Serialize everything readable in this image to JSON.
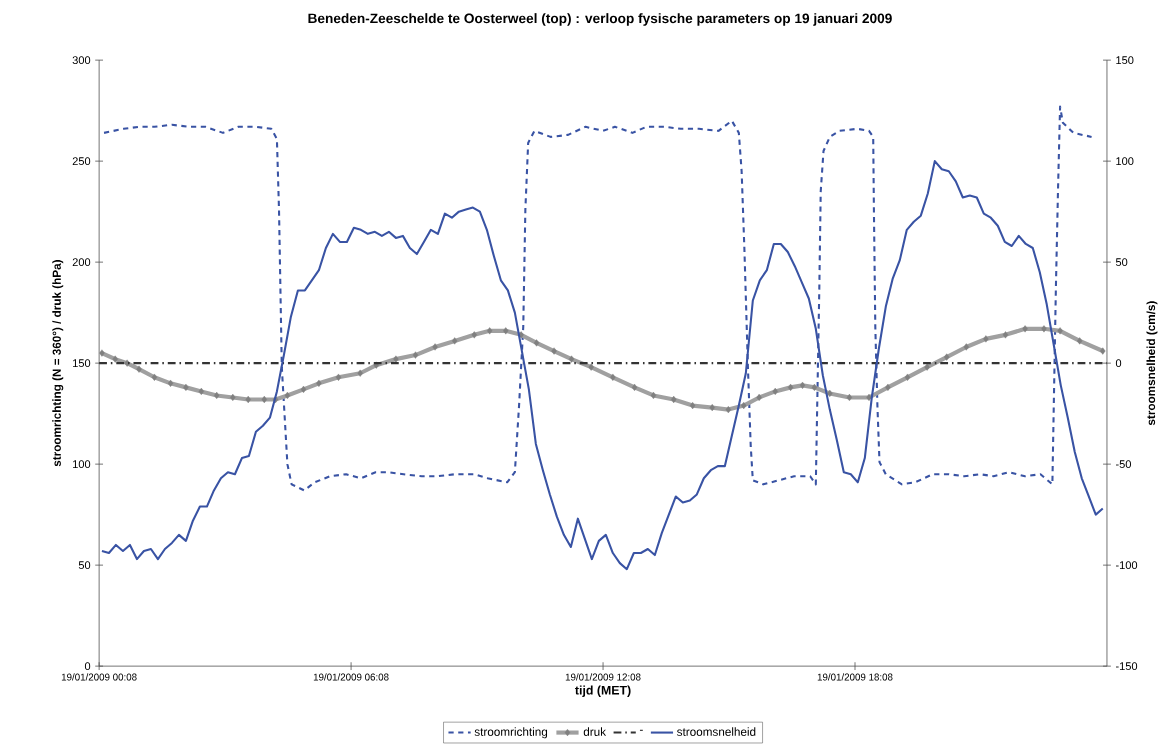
{
  "chart_data": {
    "type": "line",
    "title": "Beneden-Zeeschelde te Oosterweel (top) : verloop fysische parameters op 19 januari 2009",
    "xlabel": "tijd (MET)",
    "ylabel": "stroomrichting (N = 360°) / druk (hPa)",
    "y2label": "stroomsnelheid (cm/s)",
    "xlim": [
      "2009-01-19T00:08",
      "2009-01-20T00:08"
    ],
    "xticks": [
      {
        "value": "2009-01-19T00:08",
        "label": "19/01/2009 00:08"
      },
      {
        "value": "2009-01-19T06:08",
        "label": "19/01/2009 06:08"
      },
      {
        "value": "2009-01-19T12:08",
        "label": "19/01/2009 12:08"
      },
      {
        "value": "2009-01-19T18:08",
        "label": "19/01/2009 18:08"
      }
    ],
    "ylim": [
      0,
      300
    ],
    "yticks": [
      0,
      50,
      100,
      150,
      200,
      250,
      300
    ],
    "y2lim": [
      -150,
      150
    ],
    "y2ticks": [
      -150,
      -100,
      -50,
      0,
      50,
      100,
      150
    ],
    "legend": "bottom",
    "series": [
      {
        "name": "stroomrichting",
        "color": "#3953a4",
        "line_style": "dashed",
        "marker": "none",
        "axis": "y",
        "x": [
          "2009-01-19T00:15",
          "2009-01-19T00:43",
          "2009-01-19T01:05",
          "2009-01-19T01:27",
          "2009-01-19T01:52",
          "2009-01-19T02:17",
          "2009-01-19T02:40",
          "2009-01-19T03:05",
          "2009-01-19T03:27",
          "2009-01-19T03:52",
          "2009-01-19T04:14",
          "2009-01-19T04:22",
          "2009-01-19T04:25",
          "2009-01-19T04:29",
          "2009-01-19T04:37",
          "2009-01-19T04:43",
          "2009-01-19T05:01",
          "2009-01-19T05:16",
          "2009-01-19T05:38",
          "2009-01-19T06:01",
          "2009-01-19T06:22",
          "2009-01-19T06:43",
          "2009-01-19T07:01",
          "2009-01-19T07:23",
          "2009-01-19T07:49",
          "2009-01-19T08:11",
          "2009-01-19T08:36",
          "2009-01-19T09:04",
          "2009-01-19T09:23",
          "2009-01-19T09:51",
          "2009-01-19T10:02",
          "2009-01-19T10:08",
          "2009-01-19T10:14",
          "2009-01-19T10:17",
          "2009-01-19T10:21",
          "2009-01-19T10:30",
          "2009-01-19T10:53",
          "2009-01-19T11:18",
          "2009-01-19T11:43",
          "2009-01-19T12:08",
          "2009-01-19T12:25",
          "2009-01-19T12:50",
          "2009-01-19T13:10",
          "2009-01-19T13:35",
          "2009-01-19T13:59",
          "2009-01-19T14:25",
          "2009-01-19T14:53",
          "2009-01-19T15:12",
          "2009-01-19T15:22",
          "2009-01-19T15:26",
          "2009-01-19T15:30",
          "2009-01-19T15:35",
          "2009-01-19T15:39",
          "2009-01-19T15:42",
          "2009-01-19T15:57",
          "2009-01-19T16:19",
          "2009-01-19T16:41",
          "2009-01-19T17:04",
          "2009-01-19T17:12",
          "2009-01-19T17:14",
          "2009-01-19T17:17",
          "2009-01-19T17:19",
          "2009-01-19T17:23",
          "2009-01-19T17:32",
          "2009-01-19T17:46",
          "2009-01-19T18:11",
          "2009-01-19T18:28",
          "2009-01-19T18:34",
          "2009-01-19T18:35",
          "2009-01-19T18:37",
          "2009-01-19T18:40",
          "2009-01-19T18:43",
          "2009-01-19T18:52",
          "2009-01-19T19:15",
          "2009-01-19T19:34",
          "2009-01-19T19:59",
          "2009-01-19T20:22",
          "2009-01-19T20:44",
          "2009-01-19T21:07",
          "2009-01-19T21:26",
          "2009-01-19T21:48",
          "2009-01-19T22:11",
          "2009-01-19T22:33",
          "2009-01-19T22:50",
          "2009-01-19T22:52",
          "2009-01-19T22:55",
          "2009-01-19T22:58",
          "2009-01-19T23:01",
          "2009-01-19T23:05",
          "2009-01-19T23:20",
          "2009-01-19T23:46"
        ],
        "values": [
          264,
          266,
          267,
          267,
          268,
          267,
          267,
          264,
          267,
          267,
          266,
          261,
          226,
          148,
          100,
          90,
          87,
          91,
          94,
          95,
          93,
          96,
          96,
          95,
          94,
          94,
          95,
          95,
          93,
          91,
          96,
          129,
          168,
          226,
          259,
          265,
          262,
          263,
          267,
          265,
          267,
          264,
          267,
          267,
          266,
          266,
          265,
          270,
          264,
          245,
          206,
          148,
          109,
          92,
          90,
          92,
          94,
          94,
          90,
          129,
          187,
          235,
          255,
          262,
          265,
          266,
          265,
          262,
          226,
          168,
          129,
          101,
          95,
          90,
          91,
          95,
          95,
          94,
          95,
          94,
          96,
          94,
          95,
          90,
          129,
          187,
          235,
          277,
          269,
          264,
          262
        ]
      },
      {
        "name": "druk",
        "color": "#a0a0a0",
        "line_style": "solid",
        "marker": "diamond",
        "axis": "y",
        "x": [
          "2009-01-19T00:12",
          "2009-01-19T00:31",
          "2009-01-19T00:48",
          "2009-01-19T01:05",
          "2009-01-19T01:27",
          "2009-01-19T01:50",
          "2009-01-19T02:12",
          "2009-01-19T02:34",
          "2009-01-19T02:56",
          "2009-01-19T03:19",
          "2009-01-19T03:41",
          "2009-01-19T04:04",
          "2009-01-19T04:20",
          "2009-01-19T04:37",
          "2009-01-19T05:00",
          "2009-01-19T05:22",
          "2009-01-19T05:50",
          "2009-01-19T06:21",
          "2009-01-19T06:44",
          "2009-01-19T07:12",
          "2009-01-19T07:40",
          "2009-01-19T08:08",
          "2009-01-19T08:36",
          "2009-01-19T09:04",
          "2009-01-19T09:26",
          "2009-01-19T09:49",
          "2009-01-19T10:11",
          "2009-01-19T10:33",
          "2009-01-19T10:58",
          "2009-01-19T11:23",
          "2009-01-19T11:51",
          "2009-01-19T12:22",
          "2009-01-19T12:53",
          "2009-01-19T13:20",
          "2009-01-19T13:49",
          "2009-01-19T14:16",
          "2009-01-19T14:44",
          "2009-01-19T15:07",
          "2009-01-19T15:29",
          "2009-01-19T15:51",
          "2009-01-19T16:14",
          "2009-01-19T16:36",
          "2009-01-19T16:53",
          "2009-01-19T17:10",
          "2009-01-19T17:32",
          "2009-01-19T18:00",
          "2009-01-19T18:28",
          "2009-01-19T18:55",
          "2009-01-19T19:23",
          "2009-01-19T19:51",
          "2009-01-19T20:19",
          "2009-01-19T20:47",
          "2009-01-19T21:15",
          "2009-01-19T21:43",
          "2009-01-19T22:11",
          "2009-01-19T22:38",
          "2009-01-19T23:01",
          "2009-01-19T23:29",
          "2009-01-20T00:02"
        ],
        "values": [
          155,
          152,
          150,
          147,
          143,
          140,
          138,
          136,
          134,
          133,
          132,
          132,
          132,
          134,
          137,
          140,
          143,
          145,
          149,
          152,
          154,
          158,
          161,
          164,
          166,
          166,
          164,
          160,
          156,
          152,
          148,
          143,
          138,
          134,
          132,
          129,
          128,
          127,
          129,
          133,
          136,
          138,
          139,
          138,
          135,
          133,
          133,
          138,
          143,
          148,
          153,
          158,
          162,
          164,
          167,
          167,
          166,
          161,
          156
        ]
      },
      {
        "name": "-",
        "color": "#333333",
        "line_style": "dashdot",
        "marker": "none",
        "axis": "y2",
        "x": [
          "2009-01-19T00:08",
          "2009-01-20T00:08"
        ],
        "values": [
          0,
          0
        ]
      },
      {
        "name": "stroomsnelheid",
        "color": "#3953a4",
        "line_style": "solid",
        "marker": "none",
        "axis": "y2",
        "x": [
          "2009-01-19T00:12",
          "2009-01-19T00:22",
          "2009-01-19T00:32",
          "2009-01-19T00:42",
          "2009-01-19T00:52",
          "2009-01-19T01:02",
          "2009-01-19T01:12",
          "2009-01-19T01:22",
          "2009-01-19T01:32",
          "2009-01-19T01:42",
          "2009-01-19T01:52",
          "2009-01-19T02:02",
          "2009-01-19T02:12",
          "2009-01-19T02:22",
          "2009-01-19T02:32",
          "2009-01-19T02:42",
          "2009-01-19T02:52",
          "2009-01-19T03:02",
          "2009-01-19T03:12",
          "2009-01-19T03:22",
          "2009-01-19T03:32",
          "2009-01-19T03:42",
          "2009-01-19T03:52",
          "2009-01-19T04:02",
          "2009-01-19T04:12",
          "2009-01-19T04:22",
          "2009-01-19T04:32",
          "2009-01-19T04:42",
          "2009-01-19T04:52",
          "2009-01-19T05:02",
          "2009-01-19T05:12",
          "2009-01-19T05:22",
          "2009-01-19T05:32",
          "2009-01-19T05:42",
          "2009-01-19T05:52",
          "2009-01-19T06:02",
          "2009-01-19T06:12",
          "2009-01-19T06:22",
          "2009-01-19T06:32",
          "2009-01-19T06:42",
          "2009-01-19T06:52",
          "2009-01-19T07:02",
          "2009-01-19T07:12",
          "2009-01-19T07:22",
          "2009-01-19T07:32",
          "2009-01-19T07:42",
          "2009-01-19T07:52",
          "2009-01-19T08:02",
          "2009-01-19T08:12",
          "2009-01-19T08:22",
          "2009-01-19T08:32",
          "2009-01-19T08:42",
          "2009-01-19T08:52",
          "2009-01-19T09:02",
          "2009-01-19T09:12",
          "2009-01-19T09:22",
          "2009-01-19T09:32",
          "2009-01-19T09:42",
          "2009-01-19T09:52",
          "2009-01-19T10:02",
          "2009-01-19T10:12",
          "2009-01-19T10:22",
          "2009-01-19T10:32",
          "2009-01-19T10:42",
          "2009-01-19T10:52",
          "2009-01-19T11:02",
          "2009-01-19T11:12",
          "2009-01-19T11:22",
          "2009-01-19T11:32",
          "2009-01-19T11:42",
          "2009-01-19T11:52",
          "2009-01-19T12:02",
          "2009-01-19T12:12",
          "2009-01-19T12:22",
          "2009-01-19T12:32",
          "2009-01-19T12:42",
          "2009-01-19T12:52",
          "2009-01-19T13:02",
          "2009-01-19T13:12",
          "2009-01-19T13:22",
          "2009-01-19T13:32",
          "2009-01-19T13:42",
          "2009-01-19T13:52",
          "2009-01-19T14:02",
          "2009-01-19T14:12",
          "2009-01-19T14:22",
          "2009-01-19T14:32",
          "2009-01-19T14:42",
          "2009-01-19T14:52",
          "2009-01-19T15:02",
          "2009-01-19T15:12",
          "2009-01-19T15:22",
          "2009-01-19T15:32",
          "2009-01-19T15:42",
          "2009-01-19T15:52",
          "2009-01-19T16:02",
          "2009-01-19T16:12",
          "2009-01-19T16:22",
          "2009-01-19T16:32",
          "2009-01-19T16:42",
          "2009-01-19T16:52",
          "2009-01-19T17:02",
          "2009-01-19T17:12",
          "2009-01-19T17:22",
          "2009-01-19T17:32",
          "2009-01-19T17:42",
          "2009-01-19T17:52",
          "2009-01-19T18:02",
          "2009-01-19T18:12",
          "2009-01-19T18:22",
          "2009-01-19T18:32",
          "2009-01-19T18:42",
          "2009-01-19T18:52",
          "2009-01-19T19:02",
          "2009-01-19T19:12",
          "2009-01-19T19:22",
          "2009-01-19T19:32",
          "2009-01-19T19:42",
          "2009-01-19T19:52",
          "2009-01-19T20:02",
          "2009-01-19T20:12",
          "2009-01-19T20:22",
          "2009-01-19T20:32",
          "2009-01-19T20:42",
          "2009-01-19T20:52",
          "2009-01-19T21:02",
          "2009-01-19T21:12",
          "2009-01-19T21:22",
          "2009-01-19T21:32",
          "2009-01-19T21:42",
          "2009-01-19T21:52",
          "2009-01-19T22:02",
          "2009-01-19T22:12",
          "2009-01-19T22:22",
          "2009-01-19T22:32",
          "2009-01-19T22:42",
          "2009-01-19T22:52",
          "2009-01-19T23:02",
          "2009-01-19T23:12",
          "2009-01-19T23:22",
          "2009-01-19T23:32",
          "2009-01-19T23:42",
          "2009-01-19T23:52",
          "2009-01-20T00:02"
        ],
        "values": [
          -93,
          -94,
          -90,
          -93,
          -90,
          -97,
          -93,
          -92,
          -97,
          -92,
          -89,
          -85,
          -88,
          -78,
          -71,
          -71,
          -63,
          -57,
          -54,
          -55,
          -47,
          -46,
          -34,
          -31,
          -27,
          -14,
          4,
          23,
          36,
          36,
          41,
          46,
          57,
          64,
          60,
          60,
          67,
          66,
          64,
          65,
          63,
          65,
          62,
          63,
          57,
          54,
          60,
          66,
          64,
          74,
          72,
          75,
          76,
          77,
          75,
          66,
          53,
          41,
          36,
          25,
          6,
          -13,
          -40,
          -53,
          -65,
          -76,
          -85,
          -91,
          -77,
          -87,
          -97,
          -88,
          -85,
          -94,
          -99,
          -102,
          -94,
          -94,
          -92,
          -95,
          -84,
          -75,
          -66,
          -69,
          -68,
          -65,
          -57,
          -53,
          -51,
          -51,
          -36,
          -21,
          -5,
          31,
          41,
          46,
          59,
          59,
          55,
          48,
          40,
          32,
          17,
          -6,
          -23,
          -38,
          -54,
          -55,
          -59,
          -47,
          -17,
          7,
          28,
          42,
          51,
          66,
          70,
          73,
          84,
          100,
          96,
          95,
          90,
          82,
          83,
          82,
          74,
          72,
          68,
          60,
          58,
          63,
          59,
          57,
          45,
          29,
          9,
          -11,
          -27,
          -44,
          -57,
          -66,
          -75,
          -72
        ]
      }
    ]
  }
}
